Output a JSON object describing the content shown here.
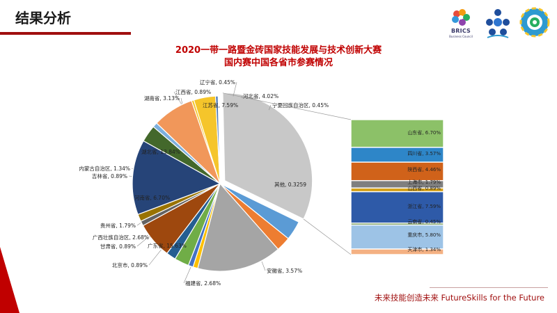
{
  "slide": {
    "title": "结果分析",
    "footer": "未来技能创造未来 FutureSkills for the Future",
    "brics_logo_text": "BRICS",
    "brics_logo_subtext": "Business Council"
  },
  "colors": {
    "accent": "#a00f0f",
    "title_red": "#c00000"
  },
  "chart_data": {
    "type": "pie",
    "title": [
      "2020一带一路暨金砖国家技能发展与技术创新大赛",
      "国内赛中国各省市参赛情况"
    ],
    "slices": [
      {
        "label": "辽宁省, 0.45%",
        "value": 0.45,
        "color": "#f5c52b"
      },
      {
        "label": "河北省, 4.02%",
        "value": 4.02,
        "color": "#f5c52b"
      },
      {
        "label": "宁夏回族自治区, 0.45%",
        "value": 0.45,
        "color": "#4a78b8"
      },
      {
        "label": "其他, 0.3259",
        "value": 32.59,
        "color": "#c8c8c8"
      },
      {
        "label": "安徽省, 3.57%",
        "value": 3.57,
        "color": "#5b9bd5"
      },
      {
        "label": "福建省, 2.68%",
        "value": 2.68,
        "color": "#ed7d31"
      },
      {
        "label": "广东省, 15.63%",
        "value": 15.63,
        "color": "#a5a5a5"
      },
      {
        "label": "北京市, 0.89%",
        "value": 0.89,
        "color": "#ffc000"
      },
      {
        "label": "甘肃省, 0.89%",
        "value": 0.89,
        "color": "#4472c4"
      },
      {
        "label": "广西壮族自治区, 2.68%",
        "value": 2.68,
        "color": "#70ad47"
      },
      {
        "label": "贵州省, 1.79%",
        "value": 1.79,
        "color": "#255e91"
      },
      {
        "label": "河南省, 6.70%",
        "value": 6.7,
        "color": "#9e480e"
      },
      {
        "label": "吉林省, 0.89%",
        "value": 0.89,
        "color": "#636363"
      },
      {
        "label": "内蒙古自治区, 1.34%",
        "value": 1.34,
        "color": "#997300"
      },
      {
        "label": "湖北省, 13.84%",
        "value": 13.84,
        "color": "#264478"
      },
      {
        "label": "湖南省, 3.13%",
        "value": 3.13,
        "color": "#43682b"
      },
      {
        "label": "江西省, 0.89%",
        "value": 0.89,
        "color": "#7cafdd"
      },
      {
        "label": "江苏省, 7.59%",
        "value": 7.59,
        "color": "#f1975a"
      }
    ],
    "breakdown_parent": "其他, 0.3259",
    "breakdown": [
      {
        "label": "山东省, 6.70%",
        "value": 6.7,
        "color": "#8cc168"
      },
      {
        "label": "四川省, 3.57%",
        "value": 3.57,
        "color": "#2e86c8"
      },
      {
        "label": "陕西省, 4.46%",
        "value": 4.46,
        "color": "#d0621a"
      },
      {
        "label": "上海市, 1.79%",
        "value": 1.79,
        "color": "#7f7f7f"
      },
      {
        "label": "山西省, 0.89%",
        "value": 0.89,
        "color": "#d4a017"
      },
      {
        "label": "浙江省, 7.59%",
        "value": 7.59,
        "color": "#2e5aa8"
      },
      {
        "label": "云南省, 0.45%",
        "value": 0.45,
        "color": "#548235"
      },
      {
        "label": "重庆市, 5.80%",
        "value": 5.8,
        "color": "#9dc3e6"
      },
      {
        "label": "天津市, 1.34%",
        "value": 1.34,
        "color": "#f4b183"
      }
    ]
  }
}
